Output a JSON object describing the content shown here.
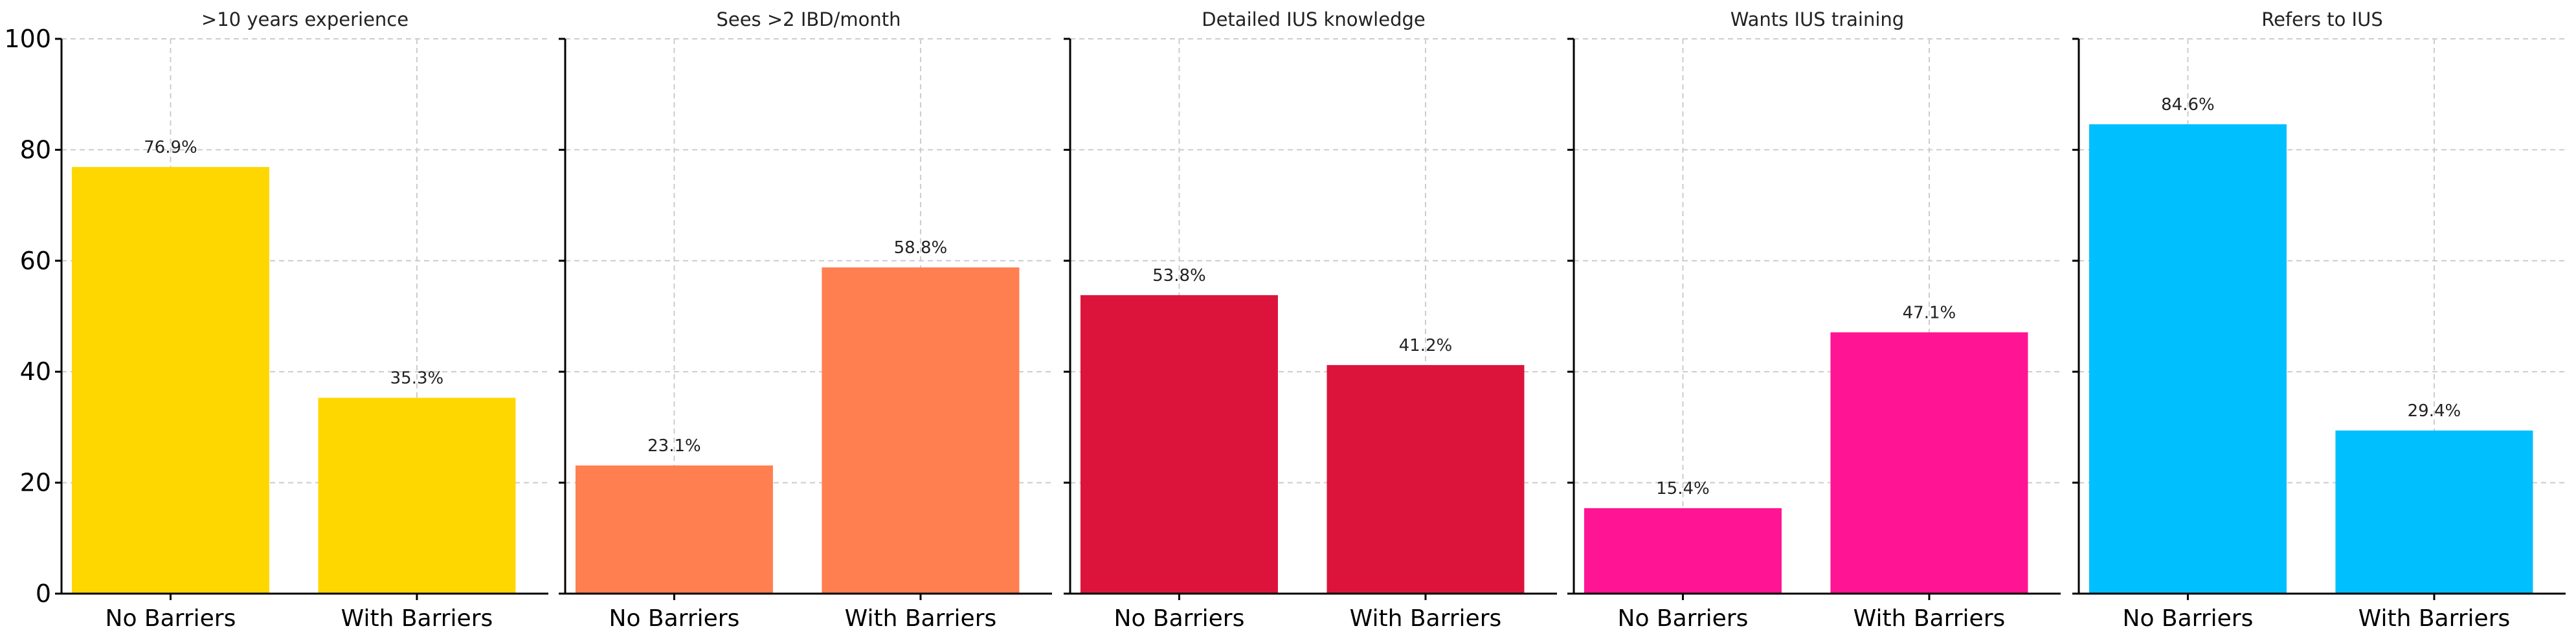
{
  "chart_data": [
    {
      "type": "bar",
      "title": ">10 years experience",
      "categories": [
        "No Barriers",
        "With Barriers"
      ],
      "values": [
        76.9,
        35.3
      ],
      "value_labels": [
        "76.9%",
        "35.3%"
      ],
      "color": "#FFD700",
      "ylim": [
        0,
        100
      ],
      "yticks": [
        0,
        20,
        40,
        60,
        80,
        100
      ],
      "grid": true
    },
    {
      "type": "bar",
      "title": "Sees >2 IBD/month",
      "categories": [
        "No Barriers",
        "With Barriers"
      ],
      "values": [
        23.1,
        58.8
      ],
      "value_labels": [
        "23.1%",
        "58.8%"
      ],
      "color": "#FF7F50",
      "ylim": [
        0,
        100
      ],
      "yticks": [
        0,
        20,
        40,
        60,
        80,
        100
      ],
      "grid": true
    },
    {
      "type": "bar",
      "title": "Detailed IUS knowledge",
      "categories": [
        "No Barriers",
        "With Barriers"
      ],
      "values": [
        53.8,
        41.2
      ],
      "value_labels": [
        "53.8%",
        "41.2%"
      ],
      "color": "#DC143C",
      "ylim": [
        0,
        100
      ],
      "yticks": [
        0,
        20,
        40,
        60,
        80,
        100
      ],
      "grid": true
    },
    {
      "type": "bar",
      "title": "Wants IUS training",
      "categories": [
        "No Barriers",
        "With Barriers"
      ],
      "values": [
        15.4,
        47.1
      ],
      "value_labels": [
        "15.4%",
        "47.1%"
      ],
      "color": "#FF1493",
      "ylim": [
        0,
        100
      ],
      "yticks": [
        0,
        20,
        40,
        60,
        80,
        100
      ],
      "grid": true
    },
    {
      "type": "bar",
      "title": "Refers to IUS",
      "categories": [
        "No Barriers",
        "With Barriers"
      ],
      "values": [
        84.6,
        29.4
      ],
      "value_labels": [
        "84.6%",
        "29.4%"
      ],
      "color": "#00BFFF",
      "ylim": [
        0,
        100
      ],
      "yticks": [
        0,
        20,
        40,
        60,
        80,
        100
      ],
      "grid": true
    }
  ]
}
